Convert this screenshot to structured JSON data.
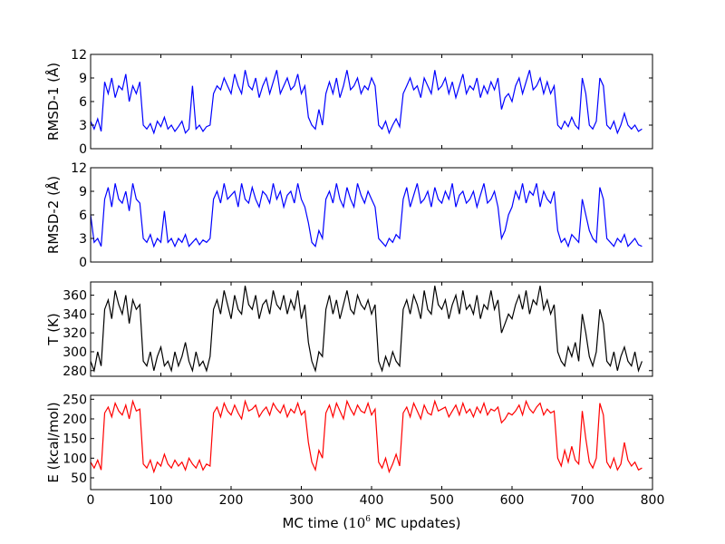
{
  "chart_data": [
    {
      "type": "line",
      "ylabel": "RMSD-1 (Å)",
      "ylim": [
        0,
        12
      ],
      "yticks": [
        0,
        3,
        6,
        9,
        12
      ],
      "color": "#0000ff",
      "x_start": 0,
      "x_step": 5,
      "y": [
        3.5,
        2.5,
        3.8,
        2.2,
        8.5,
        7,
        9,
        6.5,
        8,
        7.5,
        9.5,
        6,
        8,
        7,
        8.5,
        3,
        2.5,
        3.2,
        2,
        3.5,
        2.8,
        4,
        2.5,
        3,
        2.2,
        2.8,
        3.5,
        2,
        2.5,
        8,
        2.5,
        3,
        2.2,
        2.8,
        3,
        7,
        8,
        7.5,
        9,
        8,
        7,
        9.5,
        8,
        7,
        10,
        8,
        7.5,
        9,
        6.5,
        8,
        9,
        7,
        8.5,
        10,
        7,
        8,
        9,
        7.5,
        8,
        9.5,
        7,
        8,
        4,
        3,
        2.5,
        5,
        3,
        7,
        8.5,
        7,
        9,
        6.5,
        8,
        10,
        7.5,
        8,
        9,
        7,
        8,
        7.5,
        9,
        8,
        3,
        2.5,
        3.5,
        2,
        3,
        3.8,
        2.8,
        7,
        8,
        9,
        7.5,
        8,
        6.5,
        9,
        8,
        7,
        10,
        7.5,
        8,
        9,
        7,
        8.5,
        6.5,
        8,
        9.5,
        7,
        8,
        7.5,
        9,
        6.5,
        8,
        7,
        8.5,
        7.5,
        9,
        5,
        6.5,
        7,
        6,
        8,
        9,
        7,
        8.5,
        10,
        7.5,
        8,
        9,
        7,
        8.5,
        7,
        8,
        3,
        2.5,
        3.5,
        2.8,
        4,
        3,
        2.5,
        9,
        7,
        3,
        2.5,
        3.5,
        9,
        8,
        3,
        2.5,
        3.5,
        2,
        3,
        4.5,
        3,
        2.5,
        3,
        2.2,
        2.5
      ]
    },
    {
      "type": "line",
      "ylabel": "RMSD-2 (Å)",
      "ylim": [
        0,
        12
      ],
      "yticks": [
        0,
        3,
        6,
        9,
        12
      ],
      "color": "#0000ff",
      "x_start": 0,
      "x_step": 5,
      "y": [
        6,
        2.5,
        3,
        2,
        8,
        9.5,
        7,
        10,
        8,
        7.5,
        9,
        6.5,
        10,
        8,
        7.5,
        3,
        2.5,
        3.5,
        2,
        3,
        2.5,
        6.5,
        2.5,
        3,
        2,
        3,
        2.5,
        3.5,
        2,
        2.5,
        3,
        2.2,
        2.8,
        2.5,
        3,
        8,
        9,
        7.5,
        10,
        8,
        8.5,
        9,
        7,
        10,
        8,
        7.5,
        9.5,
        8,
        7,
        9,
        8.5,
        7.5,
        10,
        8,
        9,
        7,
        8.5,
        9,
        7.5,
        10,
        8,
        7,
        5,
        2.5,
        2,
        4,
        3,
        8,
        9,
        7.5,
        10,
        8,
        7,
        9.5,
        8,
        7,
        10,
        8.5,
        7.5,
        9,
        8,
        7,
        3,
        2.5,
        2,
        3,
        2.5,
        3.5,
        3,
        8,
        9.5,
        7,
        8.5,
        10,
        7.5,
        8,
        9,
        7,
        9.5,
        8,
        7.5,
        9,
        8,
        10,
        7,
        8.5,
        9,
        7.5,
        8,
        9,
        7,
        8.5,
        10,
        7.5,
        8,
        9,
        7,
        3,
        4,
        6,
        7,
        9,
        8,
        10,
        7.5,
        9,
        8.5,
        10,
        7,
        9,
        8,
        7.5,
        9,
        4,
        2.5,
        3,
        2,
        3.5,
        3,
        2.5,
        8,
        6,
        4,
        3,
        2.5,
        9.5,
        8,
        3,
        2.5,
        2,
        3,
        2.5,
        3.5,
        2,
        2.5,
        3,
        2.2,
        2
      ]
    },
    {
      "type": "line",
      "ylabel": "T (K)",
      "ylim": [
        274,
        374
      ],
      "yticks": [
        280,
        300,
        320,
        340,
        360
      ],
      "color": "#000000",
      "x_start": 0,
      "x_step": 5,
      "y": [
        290,
        280,
        300,
        285,
        345,
        355,
        335,
        365,
        350,
        340,
        360,
        330,
        355,
        345,
        350,
        290,
        285,
        300,
        280,
        295,
        305,
        285,
        290,
        280,
        300,
        285,
        295,
        310,
        290,
        280,
        300,
        285,
        290,
        280,
        295,
        345,
        355,
        340,
        365,
        350,
        335,
        360,
        345,
        340,
        370,
        350,
        345,
        360,
        335,
        350,
        355,
        340,
        365,
        350,
        345,
        360,
        340,
        355,
        345,
        365,
        335,
        350,
        310,
        290,
        280,
        300,
        295,
        345,
        360,
        340,
        355,
        335,
        350,
        365,
        345,
        340,
        360,
        350,
        345,
        355,
        340,
        350,
        290,
        280,
        295,
        285,
        300,
        290,
        285,
        345,
        355,
        340,
        360,
        350,
        335,
        365,
        345,
        340,
        370,
        350,
        345,
        355,
        335,
        350,
        360,
        340,
        365,
        345,
        350,
        340,
        360,
        335,
        350,
        345,
        365,
        345,
        355,
        320,
        330,
        340,
        335,
        350,
        360,
        345,
        365,
        340,
        355,
        350,
        370,
        345,
        355,
        340,
        350,
        300,
        290,
        285,
        305,
        295,
        310,
        290,
        340,
        320,
        295,
        285,
        300,
        345,
        330,
        290,
        285,
        300,
        280,
        295,
        305,
        290,
        285,
        300,
        280,
        290
      ]
    },
    {
      "type": "line",
      "ylabel": "E (kcal/mol)",
      "ylim": [
        20,
        260
      ],
      "yticks": [
        50,
        100,
        150,
        200,
        250
      ],
      "color": "#ff0000",
      "x_start": 0,
      "x_step": 5,
      "y": [
        90,
        75,
        95,
        70,
        215,
        230,
        205,
        240,
        220,
        210,
        235,
        200,
        245,
        220,
        225,
        85,
        75,
        95,
        65,
        90,
        80,
        110,
        85,
        75,
        95,
        80,
        90,
        70,
        100,
        85,
        75,
        95,
        70,
        85,
        80,
        215,
        230,
        205,
        240,
        220,
        210,
        235,
        215,
        200,
        245,
        220,
        225,
        235,
        205,
        220,
        230,
        210,
        240,
        225,
        215,
        235,
        205,
        225,
        215,
        240,
        210,
        220,
        140,
        90,
        70,
        120,
        100,
        215,
        235,
        205,
        240,
        220,
        200,
        245,
        225,
        210,
        235,
        220,
        215,
        240,
        210,
        225,
        90,
        75,
        100,
        65,
        85,
        110,
        80,
        215,
        230,
        205,
        240,
        220,
        200,
        235,
        215,
        210,
        245,
        220,
        225,
        230,
        205,
        220,
        235,
        210,
        240,
        215,
        225,
        205,
        230,
        215,
        240,
        210,
        225,
        220,
        230,
        190,
        200,
        215,
        210,
        220,
        235,
        210,
        245,
        225,
        215,
        230,
        240,
        210,
        225,
        215,
        220,
        100,
        80,
        120,
        90,
        130,
        95,
        85,
        220,
        150,
        90,
        75,
        100,
        240,
        210,
        90,
        75,
        100,
        70,
        85,
        140,
        95,
        80,
        90,
        70,
        75
      ]
    }
  ],
  "xaxis": {
    "xlim": [
      0,
      800
    ],
    "xticks": [
      0,
      100,
      200,
      300,
      400,
      500,
      600,
      700,
      800
    ],
    "xlabel_prefix": "MC time (",
    "xlabel_base": "10",
    "xlabel_exp": "6",
    "xlabel_suffix": "  MC updates)"
  }
}
